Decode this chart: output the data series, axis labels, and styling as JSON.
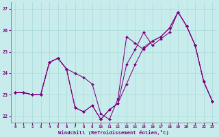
{
  "xlabel": "Windchill (Refroidissement éolien,°C)",
  "xlim_min": -0.5,
  "xlim_max": 23.5,
  "ylim_min": 21.7,
  "ylim_max": 27.3,
  "yticks": [
    22,
    23,
    24,
    25,
    26,
    27
  ],
  "xticks": [
    0,
    1,
    2,
    3,
    4,
    5,
    6,
    7,
    8,
    9,
    10,
    11,
    12,
    13,
    14,
    15,
    16,
    17,
    18,
    19,
    20,
    21,
    22,
    23
  ],
  "background_color": "#c8ecec",
  "line_color": "#800080",
  "grid_color": "#a8d8d8",
  "s1": [
    23.1,
    23.1,
    23.0,
    23.0,
    24.5,
    24.7,
    24.2,
    24.0,
    23.8,
    23.5,
    22.1,
    21.85,
    22.8,
    25.7,
    25.4,
    25.1,
    25.5,
    25.7,
    26.1,
    26.85,
    26.2,
    25.3,
    23.6,
    22.7
  ],
  "s2": [
    23.1,
    23.1,
    23.0,
    23.0,
    24.5,
    24.7,
    24.2,
    22.4,
    22.2,
    22.5,
    21.85,
    22.3,
    22.6,
    24.4,
    25.1,
    25.9,
    25.3,
    25.6,
    25.9,
    26.85,
    26.2,
    25.3,
    23.6,
    22.7
  ],
  "s3": [
    23.1,
    23.1,
    23.0,
    23.0,
    24.5,
    24.7,
    24.2,
    22.4,
    22.2,
    22.5,
    21.85,
    22.3,
    22.6,
    23.5,
    24.4,
    25.2,
    25.5,
    25.7,
    26.1,
    26.85,
    26.2,
    25.3,
    23.6,
    22.7
  ]
}
